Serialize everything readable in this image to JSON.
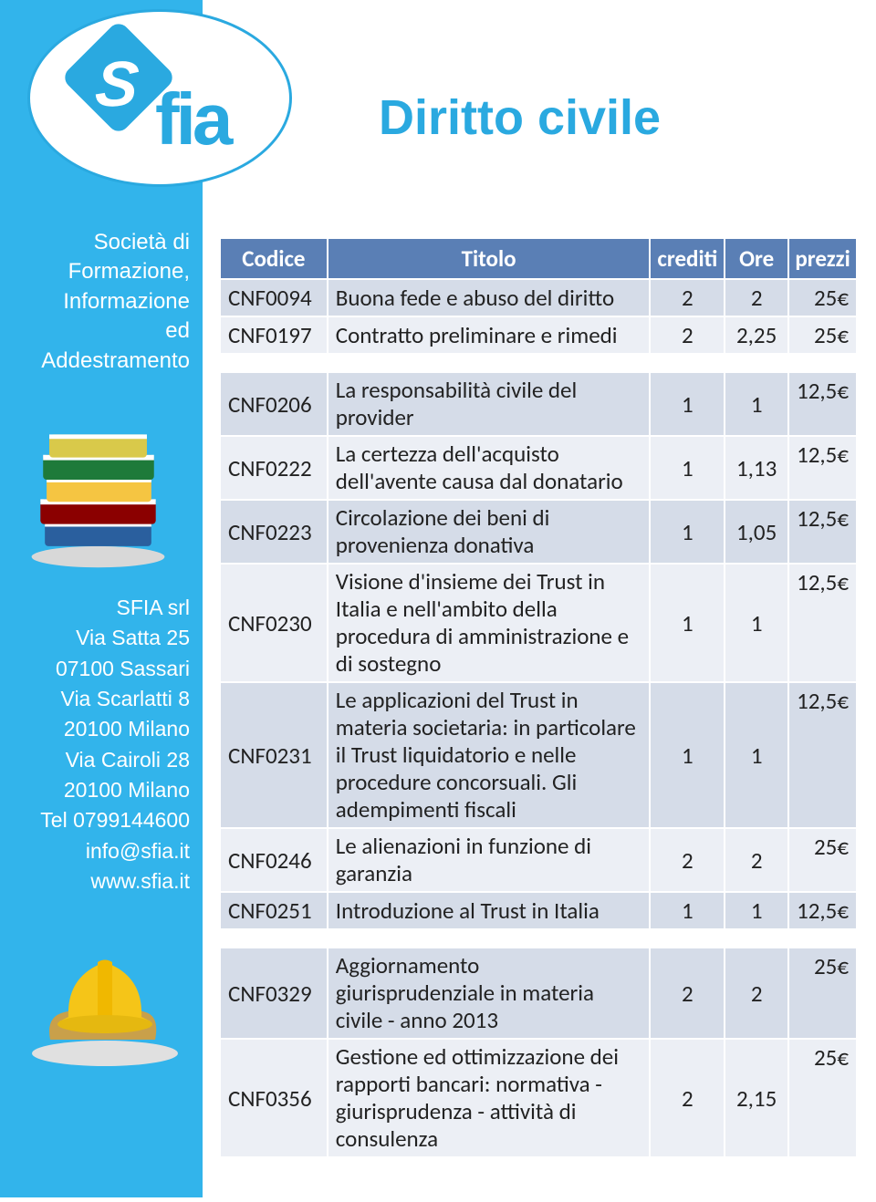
{
  "colors": {
    "brand_blue": "#2aa9e0",
    "sidebar_bg": "#32b4eb",
    "table_header_bg": "#5a7fb5",
    "row_even_bg": "#d5dce8",
    "row_odd_bg": "#eceff5",
    "text": "#222222",
    "white": "#ffffff"
  },
  "sidebar": {
    "company_description": [
      "Società di",
      "Formazione,",
      "Informazione",
      "ed",
      "Addestramento"
    ],
    "company_name": "SFIA srl",
    "address_lines": [
      "Via  Satta 25",
      "07100 Sassari",
      "Via Scarlatti 8",
      "20100 Milano",
      "Via Cairoli 28",
      "20100 Milano",
      "Tel 0799144600",
      "info@sfia.it",
      "www.sfia.it"
    ]
  },
  "logo": {
    "text_s": "S",
    "text_fia": "fia"
  },
  "page_title": "Diritto civile",
  "table": {
    "columns": [
      "Codice",
      "Titolo",
      "crediti",
      "Ore",
      "prezzi"
    ],
    "groups": [
      {
        "rows": [
          {
            "code": "CNF0094",
            "title": "Buona fede e abuso del diritto",
            "credits": "2",
            "hours": "2",
            "price": "25€"
          },
          {
            "code": "CNF0197",
            "title": "Contratto preliminare e rimedi",
            "credits": "2",
            "hours": "2,25",
            "price": "25€"
          }
        ]
      },
      {
        "rows": [
          {
            "code": "CNF0206",
            "title": "La responsabilità civile del provider",
            "credits": "1",
            "hours": "1",
            "price": "12,5€"
          },
          {
            "code": "CNF0222",
            "title": "La certezza dell'acquisto dell'avente causa dal donatario",
            "credits": "1",
            "hours": "1,13",
            "price": "12,5€"
          },
          {
            "code": "CNF0223",
            "title": "Circolazione dei beni di provenienza donativa",
            "credits": "1",
            "hours": "1,05",
            "price": "12,5€"
          },
          {
            "code": "CNF0230",
            "title": "Visione d'insieme dei Trust in Italia e nell'ambito della procedura di amministrazione e di sostegno",
            "credits": "1",
            "hours": "1",
            "price": "12,5€"
          },
          {
            "code": "CNF0231",
            "title": "Le applicazioni del Trust in materia societaria: in particolare il Trust liquidatorio e nelle procedure concorsuali. Gli adempimenti fiscali",
            "credits": "1",
            "hours": "1",
            "price": "12,5€"
          },
          {
            "code": "CNF0246",
            "title": "Le alienazioni in funzione di garanzia",
            "credits": "2",
            "hours": "2",
            "price": "25€"
          },
          {
            "code": "CNF0251",
            "title": "Introduzione al Trust in Italia",
            "credits": "1",
            "hours": "1",
            "price": "12,5€"
          }
        ]
      },
      {
        "rows": [
          {
            "code": "CNF0329",
            "title": "Aggiornamento giurisprudenziale in materia civile - anno 2013",
            "credits": "2",
            "hours": "2",
            "price": "25€"
          },
          {
            "code": "CNF0356",
            "title": "Gestione ed ottimizzazione dei rapporti bancari: normativa - giurisprudenza - attività di consulenza",
            "credits": "2",
            "hours": "2,15",
            "price": "25€"
          }
        ]
      }
    ]
  }
}
